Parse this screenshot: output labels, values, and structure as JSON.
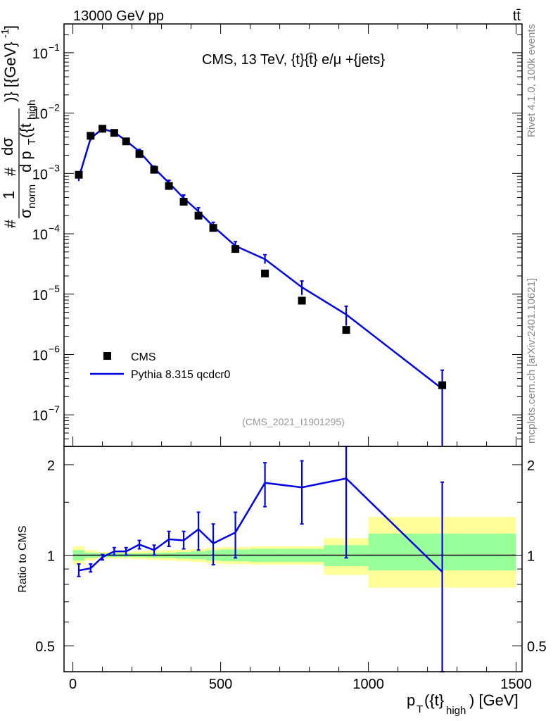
{
  "header": {
    "left": "13000 GeV pp",
    "right": "tt̄"
  },
  "side": {
    "rivet": "Rivet 4.1.0,  100k events",
    "mcplots": "mcplots.cern.ch [arXiv:2401.10621]"
  },
  "colors": {
    "data": "#000000",
    "mc": "#0000e6",
    "band_inner": "#99ff99",
    "band_outer": "#ffff99"
  },
  "chart_data": [
    {
      "type": "scatter",
      "title": "CMS, 13 TeV, {t}{t̄} e/μ +{jets}",
      "analysis": "(CMS_2021_I1901295)",
      "yscale": "log",
      "ylabel": "#frac{1}{#sigma_{norm}} #frac{d#sigma}{d p_{T}({t}_{high})} [{GeV}^{-1}]",
      "ylabel_parts": {
        "upper_numerator": "dσ",
        "upper_denominator": "d p",
        "upper_sub": "T",
        "upper_paren": "({t",
        "upper_sub2": "high",
        "upper_close": ")} [{GeV}",
        "upper_sup": "-1",
        "upper_end": "]",
        "lower_numerator": "1",
        "lower_denominator": "σ",
        "lower_sub": "norm",
        "hash": "#"
      },
      "xlim": [
        -30,
        1520
      ],
      "ylim": [
        3e-08,
        0.3
      ],
      "yticks": [
        {
          "label": "10",
          "exp": "−7",
          "v": 1e-07
        },
        {
          "label": "10",
          "exp": "−6",
          "v": 1e-06
        },
        {
          "label": "10",
          "exp": "−5",
          "v": 1e-05
        },
        {
          "label": "10",
          "exp": "−4",
          "v": 0.0001
        },
        {
          "label": "10",
          "exp": "−3",
          "v": 0.001
        },
        {
          "label": "10",
          "exp": "−2",
          "v": 0.01
        },
        {
          "label": "10",
          "exp": "−1",
          "v": 0.1
        }
      ],
      "legend": [
        {
          "label": "CMS",
          "kind": "marker"
        },
        {
          "label": "Pythia 8.315 qcdcr0",
          "kind": "line"
        }
      ],
      "series": [
        {
          "name": "CMS",
          "x": [
            20,
            60,
            100,
            140,
            180,
            225,
            275,
            325,
            375,
            425,
            475,
            550,
            650,
            775,
            925,
            1250
          ],
          "y": [
            0.00095,
            0.0042,
            0.0055,
            0.0047,
            0.0034,
            0.0021,
            0.00115,
            0.00062,
            0.00034,
            0.0002,
            0.000125,
            5.6e-05,
            2.2e-05,
            7.8e-06,
            2.55e-06,
            3.1e-07
          ]
        },
        {
          "name": "Pythia 8.315 qcdcr0",
          "x": [
            20,
            60,
            100,
            140,
            180,
            225,
            275,
            325,
            375,
            425,
            475,
            550,
            650,
            775,
            925,
            1250
          ],
          "y": [
            0.00085,
            0.0038,
            0.0055,
            0.0048,
            0.0035,
            0.0023,
            0.00122,
            0.0007,
            0.00039,
            0.000235,
            0.000133,
            6.3e-05,
            3.8e-05,
            1.3e-05,
            4.6e-06,
            2.7e-07
          ],
          "ylo": [
            0.00075,
            0.0035,
            0.0052,
            0.0045,
            0.0033,
            0.0021,
            0.00112,
            0.00063,
            0.00034,
            0.0002,
            0.000112,
            5.1e-05,
            3.2e-05,
            9.7e-06,
            3e-06,
            3e-08
          ],
          "yhi": [
            0.00095,
            0.0041,
            0.0058,
            0.0051,
            0.0037,
            0.0025,
            0.00132,
            0.00077,
            0.00044,
            0.00027,
            0.000155,
            7.4e-05,
            4.5e-05,
            1.65e-05,
            6.3e-06,
            5.5e-07
          ]
        }
      ]
    },
    {
      "type": "line",
      "ylabel": "Ratio to CMS",
      "xlabel": "p_T({t}_high) [GeV]",
      "xlabel_parts": {
        "p": "p",
        "sub": "T",
        "mid": "({t}",
        "sub2": "high",
        "end": ") [GeV]"
      },
      "yscale": "log",
      "xlim": [
        -30,
        1520
      ],
      "ylim": [
        0.41,
        2.3
      ],
      "xticks": [
        0,
        500,
        1000,
        1500
      ],
      "xtick_labels": [
        "0",
        "500",
        "1000",
        "1500"
      ],
      "yticks": [
        0.5,
        1,
        2
      ],
      "ytick_labels": [
        "0.5",
        "1",
        "2"
      ],
      "bins": [
        {
          "lo": 0,
          "hi": 40,
          "in_lo": 0.96,
          "in_hi": 1.04,
          "out_lo": 0.93,
          "out_hi": 1.07
        },
        {
          "lo": 40,
          "hi": 80,
          "in_lo": 0.98,
          "in_hi": 1.02,
          "out_lo": 0.96,
          "out_hi": 1.04
        },
        {
          "lo": 80,
          "hi": 120,
          "in_lo": 0.985,
          "in_hi": 1.015,
          "out_lo": 0.975,
          "out_hi": 1.025
        },
        {
          "lo": 120,
          "hi": 160,
          "in_lo": 0.985,
          "in_hi": 1.015,
          "out_lo": 0.975,
          "out_hi": 1.025
        },
        {
          "lo": 160,
          "hi": 200,
          "in_lo": 0.985,
          "in_hi": 1.015,
          "out_lo": 0.975,
          "out_hi": 1.025
        },
        {
          "lo": 200,
          "hi": 250,
          "in_lo": 0.985,
          "in_hi": 1.015,
          "out_lo": 0.97,
          "out_hi": 1.03
        },
        {
          "lo": 250,
          "hi": 300,
          "in_lo": 0.982,
          "in_hi": 1.018,
          "out_lo": 0.965,
          "out_hi": 1.035
        },
        {
          "lo": 300,
          "hi": 350,
          "in_lo": 0.98,
          "in_hi": 1.02,
          "out_lo": 0.96,
          "out_hi": 1.04
        },
        {
          "lo": 350,
          "hi": 400,
          "in_lo": 0.975,
          "in_hi": 1.025,
          "out_lo": 0.955,
          "out_hi": 1.045
        },
        {
          "lo": 400,
          "hi": 450,
          "in_lo": 0.97,
          "in_hi": 1.03,
          "out_lo": 0.95,
          "out_hi": 1.05
        },
        {
          "lo": 450,
          "hi": 500,
          "in_lo": 0.96,
          "in_hi": 1.04,
          "out_lo": 0.94,
          "out_hi": 1.06
        },
        {
          "lo": 500,
          "hi": 600,
          "in_lo": 0.955,
          "in_hi": 1.045,
          "out_lo": 0.935,
          "out_hi": 1.065
        },
        {
          "lo": 600,
          "hi": 700,
          "in_lo": 0.95,
          "in_hi": 1.05,
          "out_lo": 0.93,
          "out_hi": 1.07
        },
        {
          "lo": 700,
          "hi": 850,
          "in_lo": 0.95,
          "in_hi": 1.05,
          "out_lo": 0.93,
          "out_hi": 1.07
        },
        {
          "lo": 850,
          "hi": 1000,
          "in_lo": 0.92,
          "in_hi": 1.08,
          "out_lo": 0.86,
          "out_hi": 1.14
        },
        {
          "lo": 1000,
          "hi": 1500,
          "in_lo": 0.89,
          "in_hi": 1.18,
          "out_lo": 0.78,
          "out_hi": 1.34
        }
      ],
      "series": [
        {
          "name": "Pythia 8.315 qcdcr0 / CMS",
          "x": [
            20,
            60,
            100,
            140,
            180,
            225,
            275,
            325,
            375,
            425,
            475,
            550,
            650,
            775,
            925,
            1250
          ],
          "y": [
            0.89,
            0.905,
            0.985,
            1.03,
            1.03,
            1.085,
            1.04,
            1.13,
            1.12,
            1.22,
            1.095,
            1.19,
            1.74,
            1.68,
            1.8,
            0.88
          ],
          "ylo": [
            0.85,
            0.88,
            0.965,
            1.0,
            1.0,
            1.05,
            1.0,
            1.07,
            1.05,
            1.04,
            0.93,
            0.98,
            1.45,
            1.27,
            0.98,
            0.3
          ],
          "yhi": [
            0.935,
            0.935,
            1.005,
            1.06,
            1.06,
            1.12,
            1.08,
            1.2,
            1.2,
            1.39,
            1.27,
            1.39,
            2.03,
            2.06,
            2.4,
            1.75
          ]
        }
      ]
    }
  ]
}
